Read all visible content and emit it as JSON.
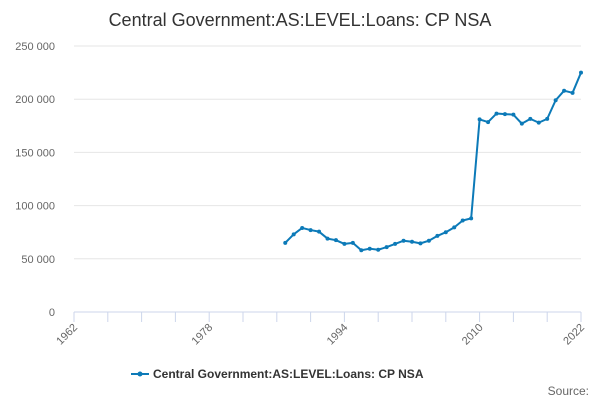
{
  "chart_data": {
    "type": "line",
    "title": "Central Government:AS:LEVEL:Loans: CP NSA",
    "xlabel": "",
    "ylabel": "",
    "xlim": [
      1962,
      2022
    ],
    "ylim": [
      0,
      250000
    ],
    "x_ticks": [
      1962,
      1966,
      1970,
      1974,
      1978,
      1982,
      1986,
      1990,
      1994,
      1998,
      2002,
      2006,
      2010,
      2014,
      2018,
      2022
    ],
    "x_tick_labels": [
      {
        "value": 1962,
        "label": "1962"
      },
      {
        "value": 1978,
        "label": "1978"
      },
      {
        "value": 1994,
        "label": "1994"
      },
      {
        "value": 2010,
        "label": "2010"
      },
      {
        "value": 2022,
        "label": "2022"
      }
    ],
    "y_ticks": [
      {
        "value": 0,
        "label": "0"
      },
      {
        "value": 50000,
        "label": "50 000"
      },
      {
        "value": 100000,
        "label": "100 000"
      },
      {
        "value": 150000,
        "label": "150 000"
      },
      {
        "value": 200000,
        "label": "200 000"
      },
      {
        "value": 250000,
        "label": "250 000"
      }
    ],
    "grid": "horizontal",
    "legend_position": "bottom",
    "series": [
      {
        "name": "Central Government:AS:LEVEL:Loans: CP NSA",
        "color": "#0c7ab8",
        "x": [
          1987,
          1988,
          1989,
          1990,
          1991,
          1992,
          1993,
          1994,
          1995,
          1996,
          1997,
          1998,
          1999,
          2000,
          2001,
          2002,
          2003,
          2004,
          2005,
          2006,
          2007,
          2008,
          2009,
          2010,
          2011,
          2012,
          2013,
          2014,
          2015,
          2016,
          2017,
          2018,
          2019,
          2020,
          2021,
          2022
        ],
        "values": [
          65000,
          73000,
          79000,
          77000,
          75500,
          69000,
          67500,
          64000,
          65000,
          58000,
          59500,
          58500,
          61000,
          64000,
          67000,
          66000,
          64500,
          67000,
          71500,
          75000,
          79500,
          86000,
          88000,
          181000,
          178500,
          186500,
          186000,
          185500,
          177000,
          181500,
          178000,
          181500,
          199000,
          208000,
          206000,
          225000
        ]
      }
    ]
  },
  "legend": {
    "label": "Central Government:AS:LEVEL:Loans: CP NSA"
  },
  "source_label": "Source:"
}
